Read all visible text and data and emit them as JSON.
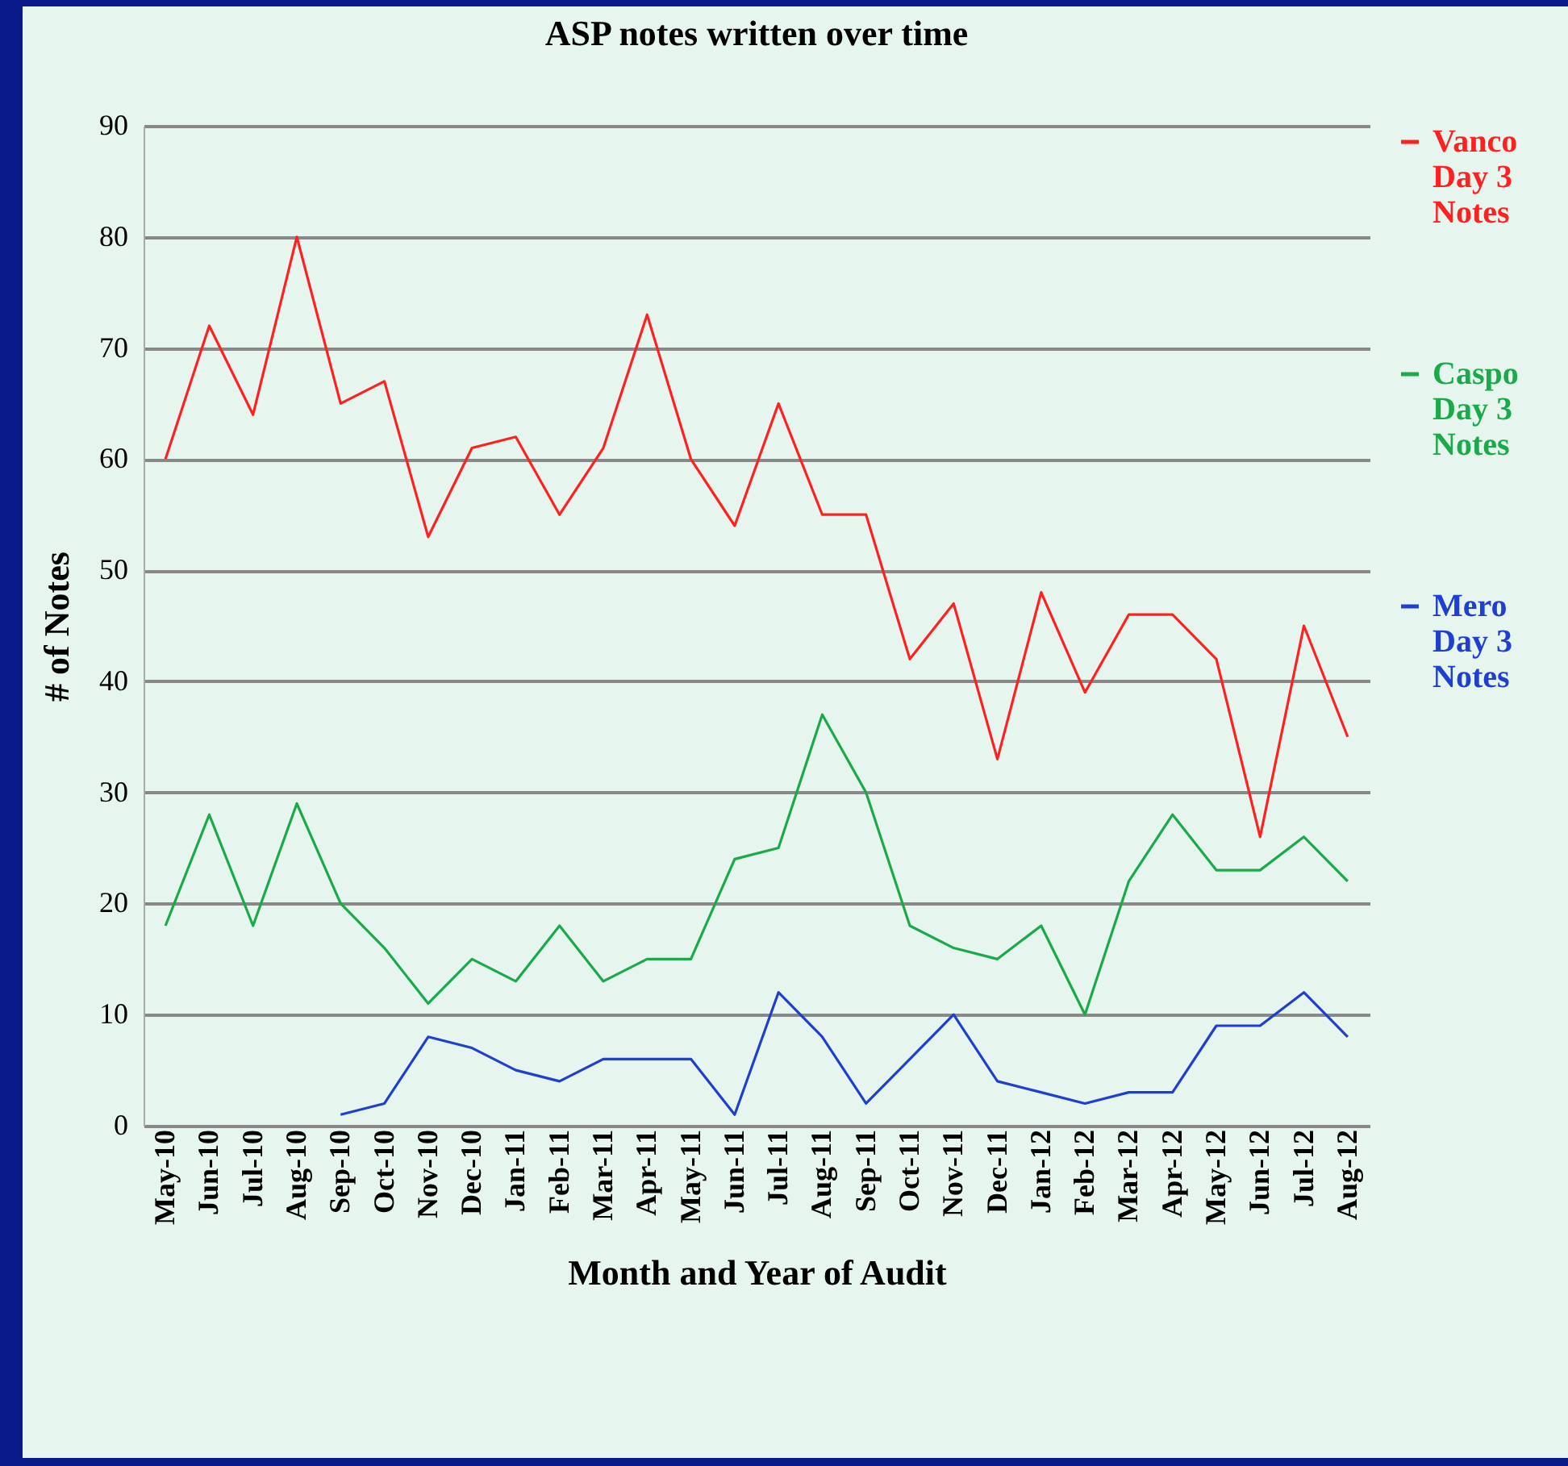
{
  "chart_data": {
    "type": "line",
    "title": "ASP notes written over time",
    "xlabel": "Month and Year of Audit",
    "ylabel": "# of Notes",
    "categories": [
      "May-10",
      "Jun-10",
      "Jul-10",
      "Aug-10",
      "Sep-10",
      "Oct-10",
      "Nov-10",
      "Dec-10",
      "Jan-11",
      "Feb-11",
      "Mar-11",
      "Apr-11",
      "May-11",
      "Jun-11",
      "Jul-11",
      "Aug-11",
      "Sep-11",
      "Oct-11",
      "Nov-11",
      "Dec-11",
      "Jan-12",
      "Feb-12",
      "Mar-12",
      "Apr-12",
      "May-12",
      "Jun-12",
      "Jul-12",
      "Aug-12"
    ],
    "series": [
      {
        "name": "Vanco Day 3 Notes",
        "color": "#ff2020",
        "values": [
          60,
          72,
          64,
          80,
          65,
          67,
          53,
          61,
          62,
          55,
          61,
          73,
          60,
          54,
          65,
          55,
          55,
          42,
          47,
          33,
          48,
          39,
          46,
          46,
          42,
          26,
          45,
          35
        ]
      },
      {
        "name": "Caspo Day 3 Notes",
        "color": "#1aaa4a",
        "values": [
          18,
          28,
          18,
          29,
          20,
          16,
          11,
          15,
          13,
          18,
          13,
          15,
          15,
          24,
          25,
          37,
          30,
          18,
          16,
          15,
          18,
          10,
          22,
          28,
          23,
          23,
          26,
          22
        ]
      },
      {
        "name": "Mero Day 3 Notes",
        "color": "#1f3fd0",
        "values": [
          null,
          null,
          null,
          null,
          1,
          2,
          8,
          7,
          5,
          4,
          6,
          6,
          6,
          1,
          12,
          8,
          2,
          6,
          10,
          4,
          3,
          2,
          3,
          3,
          9,
          9,
          12,
          8
        ]
      }
    ],
    "ylim": [
      0,
      90
    ],
    "yticks": [
      0,
      10,
      20,
      30,
      40,
      50,
      60,
      70,
      80,
      90
    ],
    "grid": "y",
    "legend": "right",
    "marker": "none",
    "line_style": "solid"
  }
}
